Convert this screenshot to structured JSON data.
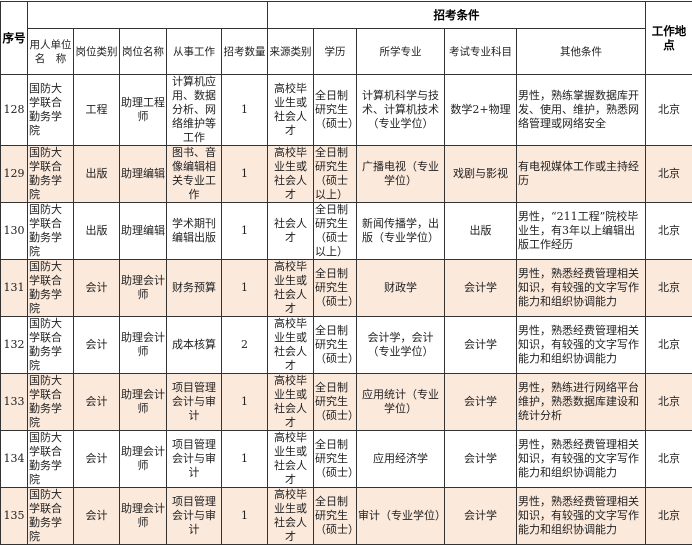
{
  "header": {
    "seq": "序号",
    "group_title": "招考条件",
    "location": "工作地点",
    "columns": [
      "用人单位名　称",
      "岗位类别",
      "岗位名称",
      "从事工作",
      "招考数量",
      "来源类别",
      "学历",
      "所学专业",
      "考试专业科目",
      "其他条件"
    ]
  },
  "rows": [
    {
      "seq": "128",
      "unit": "国防大学联合勤务学院",
      "category": "工程",
      "position": "助理工程师",
      "work": "计算机应用、数据分析、网络维护等工作",
      "count": "1",
      "source": "高校毕业生或社会人才",
      "education": "全日制研究生（硕士）",
      "major": "计算机科学与技术、计算机技术（专业学位）",
      "exam": "数学2+物理",
      "other": "男性，熟练掌握数据库开发、使用、维护，熟悉网络管理或网络安全",
      "location": "北京",
      "highlight": false
    },
    {
      "seq": "129",
      "unit": "国防大学联合勤务学院",
      "category": "出版",
      "position": "助理编辑",
      "work": "图书、音像编辑相关专业工作",
      "count": "1",
      "source": "高校毕业生或社会人才",
      "education": "全日制研究生（硕士以上）",
      "major": "广播电视（专业学位）",
      "exam": "戏剧与影视",
      "other": "有电视媒体工作或主持经历",
      "location": "北京",
      "highlight": true
    },
    {
      "seq": "130",
      "unit": "国防大学联合勤务学院",
      "category": "出版",
      "position": "助理编辑",
      "work": "学术期刊编辑出版",
      "count": "1",
      "source": "社会人才",
      "education": "全日制研究生（硕士以上）",
      "major": "新闻传播学，出版（专业学位）",
      "exam": "出版",
      "other": "男性，“211工程”院校毕业生，有3年以上编辑出版工作经历",
      "location": "北京",
      "highlight": false
    },
    {
      "seq": "131",
      "unit": "国防大学联合勤务学院",
      "category": "会计",
      "position": "助理会计师",
      "work": "财务预算",
      "count": "1",
      "source": "高校毕业生或社会人才",
      "education": "全日制研究生（硕士）",
      "major": "财政学",
      "exam": "会计学",
      "other": "男性，熟悉经费管理相关知识，有较强的文字写作能力和组织协调能力",
      "location": "北京",
      "highlight": true
    },
    {
      "seq": "132",
      "unit": "国防大学联合勤务学院",
      "category": "会计",
      "position": "助理会计师",
      "work": "成本核算",
      "count": "2",
      "source": "高校毕业生或社会人才",
      "education": "全日制研究生（硕士）",
      "major": "会计学，会计（专业学位）",
      "exam": "会计学",
      "other": "男性，熟悉经费管理相关知识，有较强的文字写作能力和组织协调能力",
      "location": "北京",
      "highlight": false
    },
    {
      "seq": "133",
      "unit": "国防大学联合勤务学院",
      "category": "会计",
      "position": "助理会计师",
      "work": "项目管理会计与审计",
      "count": "1",
      "source": "高校毕业生或社会人才",
      "education": "全日制研究生（硕士）",
      "major": "应用统计（专业学位）",
      "exam": "会计学",
      "other": "男性，熟练进行网络平台维护，熟悉数据库建设和统计分析",
      "location": "北京",
      "highlight": true
    },
    {
      "seq": "134",
      "unit": "国防大学联合勤务学院",
      "category": "会计",
      "position": "助理会计师",
      "work": "项目管理会计与审计",
      "count": "1",
      "source": "高校毕业生或社会人才",
      "education": "全日制研究生（硕士）",
      "major": "应用经济学",
      "exam": "会计学",
      "other": "男性，熟悉经费管理相关知识，有较强的文字写作能力和组织协调能力",
      "location": "北京",
      "highlight": false
    },
    {
      "seq": "135",
      "unit": "国防大学联合勤务学院",
      "category": "会计",
      "position": "助理会计师",
      "work": "项目管理会计与审计",
      "count": "1",
      "source": "高校毕业生或社会人才",
      "education": "全日制研究生（硕士）",
      "major": "审计（专业学位）",
      "exam": "会计学",
      "other": "男性，熟悉经费管理相关知识，有较强的文字写作能力和组织协调能力",
      "location": "北京",
      "highlight": true
    }
  ]
}
